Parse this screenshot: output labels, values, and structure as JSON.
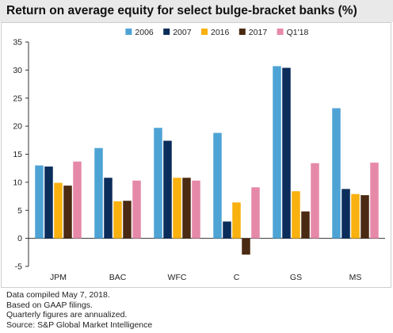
{
  "title": "Return on average equity for select bulge-bracket banks (%)",
  "notes": [
    "Data compiled May 7, 2018.",
    "Based on GAAP filings.",
    "Quarterly figures are annualized.",
    "Source: S&P Global Market Intelligence"
  ],
  "chart_data": {
    "type": "bar",
    "title": "Return on average equity for select bulge-bracket banks (%)",
    "categories": [
      "JPM",
      "BAC",
      "WFC",
      "C",
      "GS",
      "MS"
    ],
    "series": [
      {
        "name": "2006",
        "color": "#4ea3d5",
        "values": [
          13.0,
          16.1,
          19.7,
          18.8,
          30.7,
          23.2
        ]
      },
      {
        "name": "2007",
        "color": "#0b2d5b",
        "values": [
          12.8,
          10.8,
          17.4,
          3.0,
          30.4,
          8.8
        ]
      },
      {
        "name": "2016",
        "color": "#f9b110",
        "values": [
          9.9,
          6.6,
          10.8,
          6.4,
          8.4,
          7.9
        ]
      },
      {
        "name": "2017",
        "color": "#4a2a12",
        "values": [
          9.4,
          6.7,
          10.8,
          -2.9,
          4.8,
          7.7
        ]
      },
      {
        "name": "Q1'18",
        "color": "#e689a8",
        "values": [
          13.7,
          10.3,
          10.3,
          9.1,
          13.4,
          13.5
        ]
      }
    ],
    "ylim": [
      -5,
      35
    ],
    "yticks": [
      -5,
      0,
      5,
      10,
      15,
      20,
      25,
      30,
      35
    ],
    "grid": false,
    "legend": "top-center",
    "xlabel": "",
    "ylabel": ""
  }
}
